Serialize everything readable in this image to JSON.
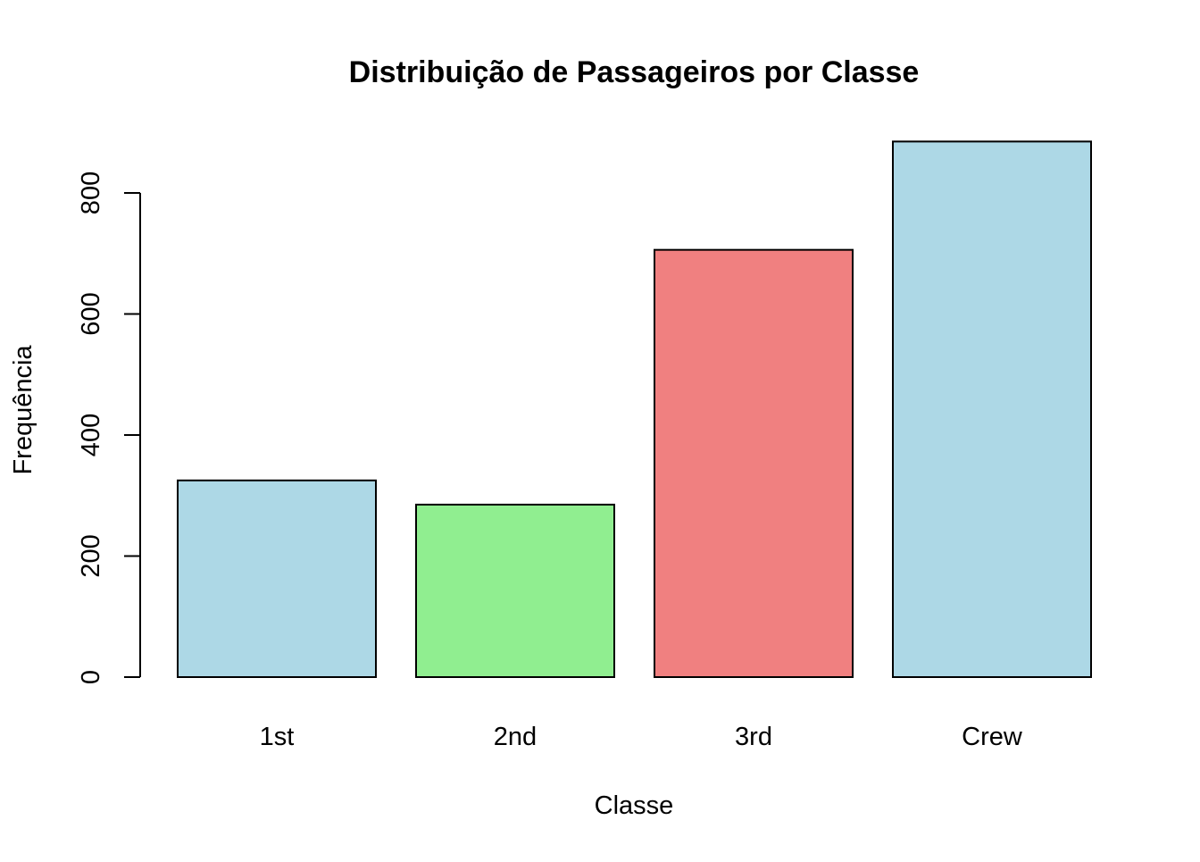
{
  "chart_data": {
    "type": "bar",
    "title": "Distribuição de Passageiros por Classe",
    "xlabel": "Classe",
    "ylabel": "Frequência",
    "categories": [
      "1st",
      "2nd",
      "3rd",
      "Crew"
    ],
    "values": [
      325,
      285,
      706,
      885
    ],
    "colors": [
      "#ADD8E6",
      "#90EE90",
      "#F08080",
      "#ADD8E6"
    ],
    "yticks": [
      0,
      200,
      400,
      600,
      800
    ],
    "ylim": [
      0,
      885
    ],
    "grid": false,
    "legend": "none"
  }
}
